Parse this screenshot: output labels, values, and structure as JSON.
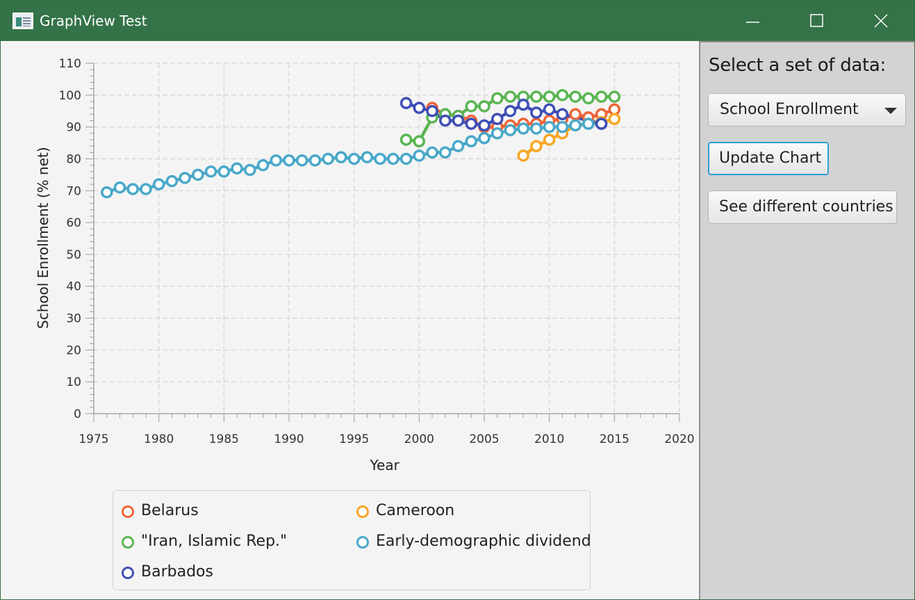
{
  "window": {
    "title": "GraphView Test",
    "icon": "application-window-icon",
    "controls": [
      "minimize-icon",
      "maximize-icon",
      "close-icon"
    ]
  },
  "side_panel": {
    "label": "Select a set of data:",
    "dropdown_value": "School Enrollment",
    "update_button": "Update Chart",
    "countries_button": "See different countries"
  },
  "colors": {
    "titlebar": "#347347",
    "Belarus": "#ef6436",
    "Cameroon": "#f7a623",
    "Iran": "#5ab553",
    "Early": "#49a8c9",
    "Barbados": "#3f4fb5",
    "focus": "#2fa0d6"
  },
  "chart_data": {
    "type": "line",
    "xlabel": "Year",
    "ylabel": "School Enrollment (% net)",
    "xlim": [
      1975,
      2020
    ],
    "ylim": [
      0,
      110
    ],
    "x_ticks": [
      "1975",
      "1980",
      "1985",
      "1990",
      "1995",
      "2000",
      "2005",
      "2010",
      "2015",
      "2020"
    ],
    "y_ticks": [
      "0",
      "10",
      "20",
      "30",
      "40",
      "50",
      "60",
      "70",
      "80",
      "90",
      "100",
      "110"
    ],
    "grid": true,
    "legend_position": "bottom",
    "series": [
      {
        "name": "Belarus",
        "x": [
          2001,
          2002,
          2003,
          2004,
          2005,
          2006,
          2007,
          2008,
          2009,
          2010,
          2011,
          2012,
          2013,
          2014,
          2015
        ],
        "y": [
          96,
          94,
          93.5,
          92,
          90,
          90,
          90.5,
          91,
          91,
          92,
          92.5,
          94,
          93,
          94,
          95.5
        ]
      },
      {
        "name": "Cameroon",
        "x": [
          2008,
          2009,
          2010,
          2011,
          2012,
          2013,
          2014,
          2015
        ],
        "y": [
          81,
          84,
          86,
          88,
          90.5,
          91,
          91.5,
          92.5
        ]
      },
      {
        "name": "\"Iran, Islamic Rep.\"",
        "x": [
          1999,
          2000,
          2001,
          2002,
          2003,
          2004,
          2005,
          2006,
          2007,
          2008,
          2009,
          2010,
          2011,
          2012,
          2013,
          2014,
          2015
        ],
        "y": [
          86,
          85.5,
          93,
          94,
          93.5,
          96.5,
          96.5,
          99,
          99.5,
          99.5,
          99.5,
          99.5,
          100,
          99.5,
          99,
          99.5,
          99.5
        ]
      },
      {
        "name": "Early-demographic dividend",
        "x": [
          1976,
          1977,
          1978,
          1979,
          1980,
          1981,
          1982,
          1983,
          1984,
          1985,
          1986,
          1987,
          1988,
          1989,
          1990,
          1991,
          1992,
          1993,
          1994,
          1995,
          1996,
          1997,
          1998,
          1999,
          2000,
          2001,
          2002,
          2003,
          2004,
          2005,
          2006,
          2007,
          2008,
          2009,
          2010,
          2011,
          2012,
          2013,
          2014
        ],
        "y": [
          69.5,
          71,
          70.5,
          70.5,
          72,
          73,
          74,
          75,
          76,
          76,
          77,
          76.5,
          78,
          79.5,
          79.5,
          79.5,
          79.5,
          80,
          80.5,
          80,
          80.5,
          80,
          80,
          80,
          81,
          82,
          82,
          84,
          85.5,
          86.5,
          88,
          89,
          89.5,
          89.5,
          90,
          90,
          90.5,
          91,
          91
        ]
      },
      {
        "name": "Barbados",
        "x": [
          1999,
          2000,
          2001,
          2002,
          2003,
          2004,
          2005,
          2006,
          2007,
          2008,
          2009,
          2010,
          2011,
          2014
        ],
        "y": [
          97.5,
          96,
          95,
          92,
          92,
          91,
          90.5,
          92.5,
          95,
          97,
          94.5,
          95.5,
          94,
          91
        ]
      }
    ]
  }
}
